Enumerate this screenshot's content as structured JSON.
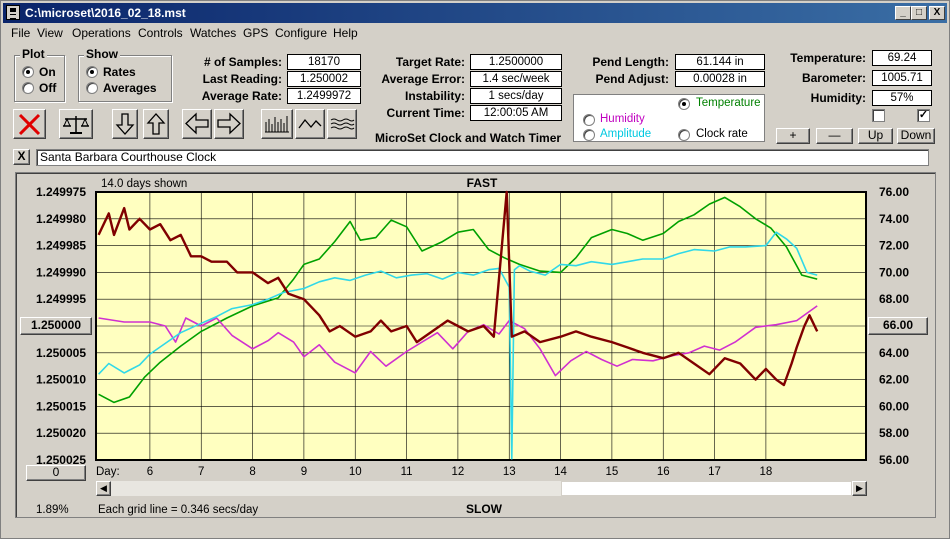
{
  "window": {
    "title": "C:\\microset\\2016_02_18.mst",
    "min": "_",
    "max": "□",
    "close": "X"
  },
  "menu": [
    "File",
    "View",
    "Operations",
    "Controls",
    "Watches",
    "GPS",
    "Configure",
    "Help"
  ],
  "plot_group": {
    "title": "Plot",
    "options": [
      "On",
      "Off"
    ],
    "selected": "On"
  },
  "show_group": {
    "title": "Show",
    "options": [
      "Rates",
      "Averages"
    ],
    "selected": "Rates"
  },
  "stats": {
    "samples_label": "# of Samples:",
    "samples_value": "18170",
    "last_reading_label": "Last Reading:",
    "last_reading_value": "1.250002",
    "average_rate_label": "Average Rate:",
    "average_rate_value": "1.2499972",
    "target_rate_label": "Target Rate:",
    "target_rate_value": "1.2500000",
    "average_error_label": "Average Error:",
    "average_error_value": "1.4 sec/week",
    "instability_label": "Instability:",
    "instability_value": "1 secs/day",
    "current_time_label": "Current Time:",
    "current_time_value": "12:00:05 AM",
    "app_name": "MicroSet Clock and Watch Timer",
    "pend_length_label": "Pend Length:",
    "pend_length_value": "61.144 in",
    "pend_adjust_label": "Pend Adjust:",
    "pend_adjust_value": "0.00028 in",
    "temperature_label": "Temperature:",
    "temperature_value": "69.24",
    "barometer_label": "Barometer:",
    "barometer_value": "1005.71",
    "humidity_label": "Humidity:",
    "humidity_value": "57%"
  },
  "aux_group": {
    "options": [
      {
        "label": "Temperature",
        "color": "#008000",
        "selected": true
      },
      {
        "label": "Humidity",
        "color": "#c000c0",
        "selected": false
      },
      {
        "label": "Amplitude",
        "color": "#00c8e0",
        "selected": false
      },
      {
        "label": "Clock rate",
        "color": "#000000",
        "selected": false
      }
    ]
  },
  "adjust_buttons": [
    "+",
    "—",
    "Up",
    "Down"
  ],
  "checkboxes": [
    {
      "checked": false
    },
    {
      "checked": true
    }
  ],
  "toolbar_icons": [
    "stop-icon",
    "balance-icon",
    "arrow-down-icon",
    "arrow-up-icon",
    "arrow-left-icon",
    "arrow-right-icon",
    "bars-icon",
    "wave-icon",
    "multi-wave-icon"
  ],
  "watch_name": {
    "close": "X",
    "value": "Santa Barbara Courthouse Clock"
  },
  "colors": {
    "rate": "#800000",
    "temperature": "#00a000",
    "humidity": "#d030d0",
    "amplitude": "#30d8e8",
    "plot_bg": "#ffffc0"
  },
  "chart_data": {
    "type": "line",
    "top_label": "FAST",
    "bottom_label": "SLOW",
    "days_shown": "14.0 days shown",
    "grid_note": "Each grid line = 0.346 secs/day",
    "percent": "1.89%",
    "day_prefix": "Day:",
    "x_ticks": [
      "6",
      "7",
      "8",
      "9",
      "10",
      "11",
      "12",
      "13",
      "14",
      "15",
      "16",
      "17",
      "18"
    ],
    "left_ticks": [
      "1.249975",
      "1.249980",
      "1.249985",
      "1.249990",
      "1.249995",
      "1.250000",
      "1.250005",
      "1.250010",
      "1.250015",
      "1.250020",
      "1.250025"
    ],
    "right_ticks": [
      "76.00",
      "74.00",
      "72.00",
      "70.00",
      "68.00",
      "66.00",
      "64.00",
      "62.00",
      "60.00",
      "58.00",
      "56.00"
    ],
    "left_center_button": "1.250000",
    "right_center_button": "66.00",
    "left_bottom_button": "0",
    "xlim": [
      4.95,
      19.95
    ],
    "ylim_left": [
      1.250025,
      1.249975
    ],
    "ylim_right": [
      56,
      76
    ],
    "series": [
      {
        "axis": "left",
        "x": [
          5.0,
          5.2,
          5.3,
          5.5,
          5.6,
          5.8,
          6.0,
          6.2,
          6.4,
          6.6,
          6.8,
          7.0,
          7.2,
          7.5,
          7.7,
          8.0,
          8.3,
          8.5,
          8.7,
          9.0,
          9.3,
          9.5,
          9.7,
          10.0,
          10.3,
          10.5,
          10.7,
          11.0,
          11.2,
          11.5,
          11.8,
          12.0,
          12.2,
          12.5,
          12.7,
          12.95,
          13.05,
          13.3,
          13.6,
          14.0,
          14.3,
          14.6,
          15.0,
          15.3,
          15.6,
          16.0,
          16.3,
          16.6,
          16.9,
          17.2,
          17.5,
          17.8,
          18.0,
          18.2,
          18.35,
          18.5,
          18.6,
          18.75,
          18.85,
          19.0
        ],
        "y": [
          1.249983,
          1.249979,
          1.249983,
          1.249978,
          1.249982,
          1.24998,
          1.249982,
          1.249981,
          1.249984,
          1.249983,
          1.249987,
          1.249987,
          1.249988,
          1.249988,
          1.24999,
          1.24999,
          1.249992,
          1.249991,
          1.249994,
          1.249995,
          1.249998,
          1.250001,
          1.25,
          1.250002,
          1.250001,
          1.249999,
          1.250001,
          1.25,
          1.250003,
          1.250001,
          1.249999,
          1.25,
          1.250001,
          1.25,
          1.250002,
          1.249975,
          1.250002,
          1.250001,
          1.250003,
          1.250002,
          1.250001,
          1.250002,
          1.250003,
          1.250004,
          1.250005,
          1.250006,
          1.250005,
          1.250007,
          1.250009,
          1.250006,
          1.250007,
          1.25001,
          1.250008,
          1.25001,
          1.250011,
          1.250007,
          1.250004,
          1.25,
          1.249998,
          1.250001
        ]
      },
      {
        "axis": "right",
        "x": [
          5.0,
          5.3,
          5.6,
          5.9,
          6.2,
          6.6,
          7.0,
          7.5,
          8.0,
          8.5,
          8.8,
          9.0,
          9.3,
          9.6,
          9.9,
          10.1,
          10.4,
          10.7,
          11.0,
          11.3,
          11.7,
          12.0,
          12.3,
          12.6,
          12.9,
          13.2,
          13.6,
          14.0,
          14.3,
          14.6,
          15.0,
          15.3,
          15.6,
          16.0,
          16.3,
          16.6,
          16.9,
          17.2,
          17.5,
          17.8,
          18.1,
          18.4,
          18.7,
          19.0
        ],
        "y": [
          60.9,
          60.3,
          60.7,
          62.2,
          63.3,
          64.5,
          65.6,
          66.6,
          67.5,
          68.1,
          69.5,
          70.6,
          71.0,
          72.3,
          73.8,
          72.4,
          72.6,
          73.9,
          73.4,
          71.6,
          72.3,
          73.0,
          73.2,
          71.7,
          71.1,
          70.6,
          70.1,
          70.0,
          71.1,
          72.6,
          73.2,
          72.9,
          72.4,
          72.9,
          73.8,
          74.3,
          75.1,
          75.6,
          74.9,
          74.0,
          73.3,
          71.9,
          69.8,
          69.5
        ]
      },
      {
        "axis": "right",
        "x": [
          5.0,
          5.5,
          6.0,
          6.3,
          6.5,
          6.7,
          7.0,
          7.3,
          7.6,
          8.0,
          8.3,
          8.5,
          8.8,
          9.0,
          9.3,
          9.6,
          10.0,
          10.3,
          10.6,
          11.0,
          11.3,
          11.6,
          11.9,
          12.2,
          12.5,
          12.8,
          13.0,
          13.3,
          13.6,
          13.9,
          14.2,
          14.5,
          14.8,
          15.1,
          15.4,
          15.8,
          16.2,
          16.5,
          16.8,
          17.1,
          17.4,
          17.8,
          18.2,
          18.6,
          19.0
        ],
        "y": [
          66.6,
          66.3,
          66.3,
          66.0,
          64.8,
          66.6,
          66.0,
          66.6,
          65.3,
          64.3,
          64.9,
          65.5,
          64.8,
          63.7,
          64.6,
          63.3,
          62.5,
          64.1,
          63.0,
          64.1,
          64.8,
          65.5,
          64.3,
          65.6,
          66.1,
          65.4,
          66.4,
          65.8,
          64.3,
          62.3,
          63.4,
          64.1,
          63.5,
          63.0,
          63.5,
          63.4,
          63.8,
          64.0,
          64.5,
          64.2,
          64.8,
          65.9,
          66.1,
          66.4,
          67.5
        ]
      },
      {
        "axis": "right",
        "x": [
          5.0,
          5.2,
          5.5,
          5.8,
          6.0,
          6.3,
          6.6,
          7.0,
          7.3,
          7.6,
          8.0,
          8.3,
          8.6,
          9.0,
          9.3,
          9.6,
          9.9,
          10.2,
          10.5,
          10.8,
          11.1,
          11.4,
          11.7,
          12.0,
          12.3,
          12.6,
          12.8,
          13.0,
          13.05,
          13.1,
          13.2,
          13.4,
          13.7,
          14.0,
          14.3,
          14.6,
          15.0,
          15.3,
          15.6,
          16.0,
          16.3,
          16.6,
          17.0,
          17.3,
          17.6,
          18.0,
          18.2,
          18.4,
          18.6,
          18.8,
          19.0
        ],
        "y": [
          62.4,
          63.2,
          62.5,
          63.1,
          63.9,
          64.7,
          65.5,
          66.2,
          66.7,
          67.3,
          67.6,
          68.0,
          68.5,
          68.8,
          69.3,
          69.6,
          69.4,
          69.8,
          70.1,
          69.6,
          69.8,
          69.9,
          69.5,
          70.0,
          69.8,
          70.2,
          70.3,
          68.9,
          56.1,
          70.2,
          70.5,
          70.1,
          69.8,
          70.6,
          70.5,
          70.8,
          70.6,
          70.8,
          71.0,
          71.0,
          71.4,
          71.7,
          71.6,
          71.9,
          71.9,
          72.0,
          73.0,
          72.5,
          71.8,
          70.0,
          69.8
        ]
      }
    ]
  }
}
